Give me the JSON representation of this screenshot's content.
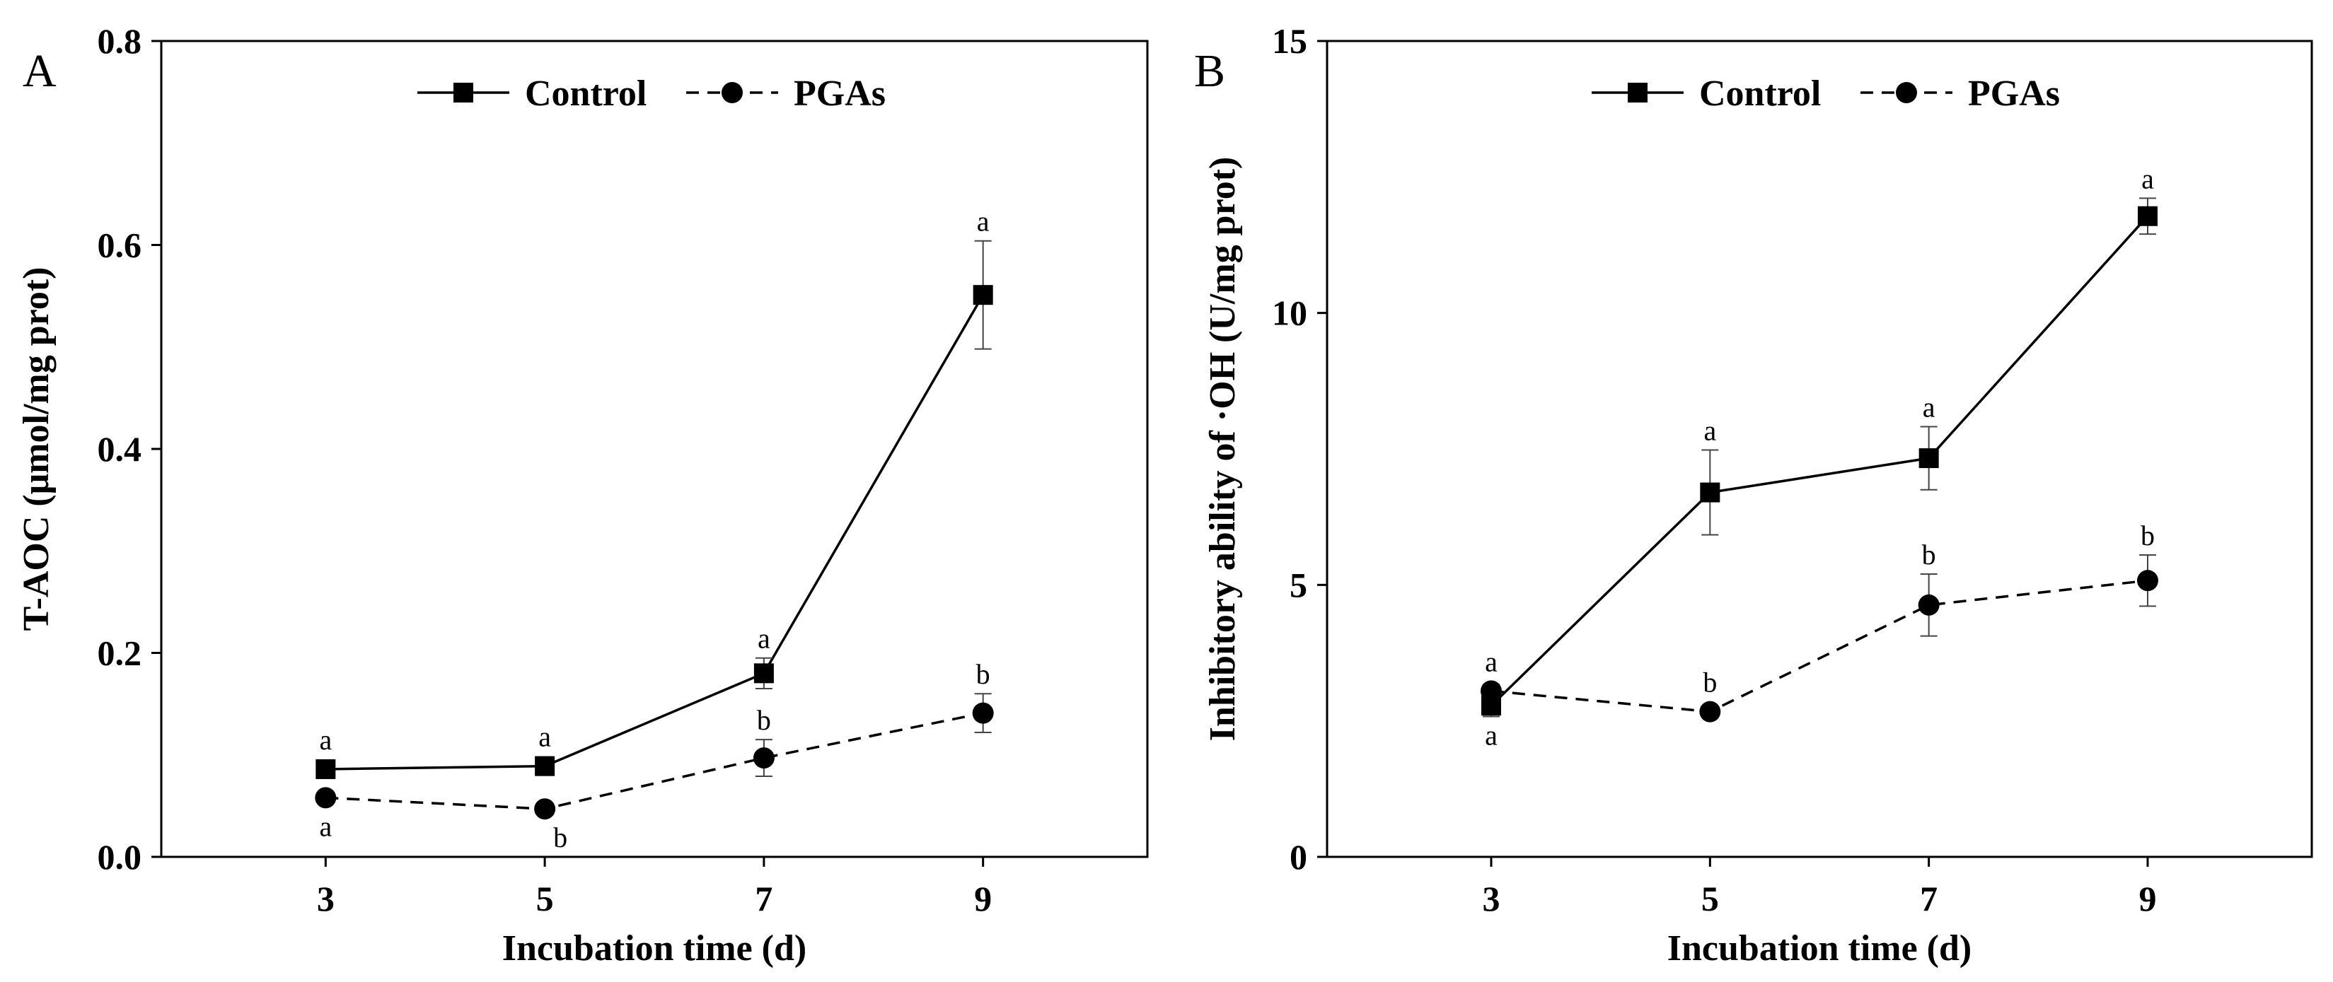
{
  "chart_data": [
    {
      "type": "line",
      "panel_label": "A",
      "x": [
        3,
        5,
        7,
        9
      ],
      "x_tick_labels": [
        "3",
        "5",
        "7",
        "9"
      ],
      "xlim": [
        1.5,
        10.5
      ],
      "ylim": [
        0,
        0.8
      ],
      "y_ticks": [
        0,
        0.2,
        0.4,
        0.6,
        0.8
      ],
      "y_tick_labels": [
        "0.0",
        "0.2",
        "0.4",
        "0.6",
        "0.8"
      ],
      "xlabel": "Incubation time (d)",
      "ylabel": "T-AOC (μmol/mg prot)",
      "grid": false,
      "legend_position": "top-center",
      "series": [
        {
          "name": "Control",
          "line_style": "solid",
          "marker": "square",
          "values": [
            0.086,
            0.089,
            0.18,
            0.551
          ],
          "errors": [
            0.008,
            0.009,
            0.015,
            0.053
          ],
          "sig_labels": [
            "a",
            "a",
            "a",
            "a"
          ],
          "sig_positions": [
            "above",
            "above",
            "above",
            "above"
          ]
        },
        {
          "name": "PGAs",
          "line_style": "dashed",
          "marker": "circle",
          "values": [
            0.058,
            0.047,
            0.097,
            0.141
          ],
          "errors": [
            0.003,
            0.004,
            0.018,
            0.019
          ],
          "sig_labels": [
            "a",
            "b",
            "b",
            "b"
          ],
          "sig_positions": [
            "below",
            "below",
            "above",
            "above"
          ]
        }
      ]
    },
    {
      "type": "line",
      "panel_label": "B",
      "x": [
        3,
        5,
        7,
        9
      ],
      "x_tick_labels": [
        "3",
        "5",
        "7",
        "9"
      ],
      "xlim": [
        1.5,
        10.5
      ],
      "ylim": [
        0,
        15
      ],
      "y_ticks": [
        0,
        5,
        10,
        15
      ],
      "y_tick_labels": [
        "0",
        "5",
        "10",
        "15"
      ],
      "xlabel": "Incubation time (d)",
      "ylabel": "Inhibitory ability of ·OH (U/mg prot)",
      "grid": false,
      "legend_position": "top-center",
      "series": [
        {
          "name": "Control",
          "line_style": "solid",
          "marker": "square",
          "values": [
            2.78,
            6.7,
            7.33,
            11.78
          ],
          "errors": [
            0.2,
            0.78,
            0.58,
            0.33
          ],
          "sig_labels": [
            "a",
            "a",
            "a",
            "a"
          ],
          "sig_positions": [
            "below",
            "above",
            "above",
            "above"
          ]
        },
        {
          "name": "PGAs",
          "line_style": "dashed",
          "marker": "circle",
          "values": [
            3.05,
            2.67,
            4.63,
            5.08
          ],
          "errors": [
            0.12,
            0.08,
            0.57,
            0.47
          ],
          "sig_labels": [
            "a",
            "b",
            "b",
            "b"
          ],
          "sig_positions": [
            "above",
            "above",
            "above",
            "above"
          ]
        }
      ]
    }
  ]
}
